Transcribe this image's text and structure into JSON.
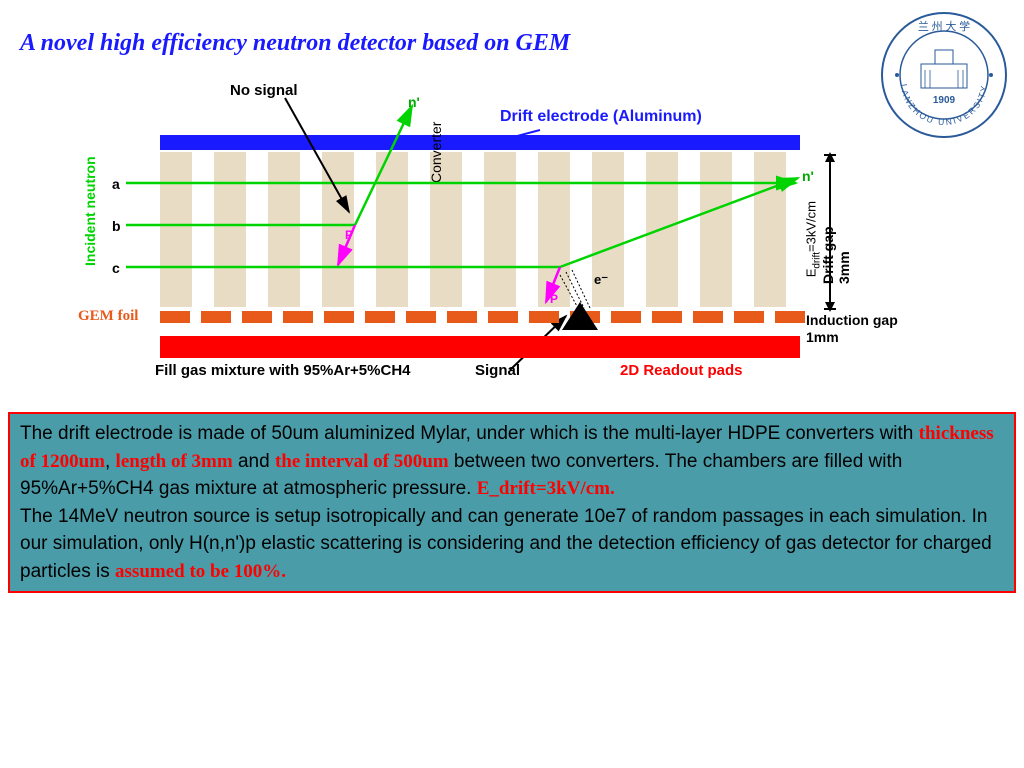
{
  "title": "A novel high efficiency neutron detector based on GEM",
  "logo": {
    "text_top": "兰州大学",
    "text_bottom": "LANZHOU UNIVERSITY",
    "year": "1909",
    "ring_color": "#2a5a9a",
    "inner_color": "#ffffff"
  },
  "diagram": {
    "drift_electrode_label": "Drift electrode (Aluminum)",
    "drift_electrode_color": "#1a1aff",
    "no_signal": "No signal",
    "converter_label": "Converter",
    "converter_color": "#e8dcc4",
    "converter_count": 12,
    "converter_width": 32,
    "converter_gap": 22,
    "gem_foil_label": "GEM foil",
    "gem_color": "#e85a1a",
    "gem_segment_count": 16,
    "readout_color": "#ff0000",
    "readout_label": "2D Readout pads",
    "fill_gas": "Fill gas mixture with 95%Ar+5%CH4",
    "signal_label": "Signal",
    "incident_label": "Incident neutron",
    "neutron_tracks": [
      "a",
      "b",
      "c"
    ],
    "nprime": "n'",
    "p_label": "P",
    "e_label": "e⁻",
    "drift_gap": "Drift gap 3mm",
    "edrift_text": "=3kV/cm",
    "edrift_prefix": "E",
    "edrift_sub": "drift",
    "induction_gap": "Induction gap",
    "induction_val": "1mm",
    "neutron_color": "#00d400",
    "proton_color": "#ff00ff"
  },
  "desc": {
    "p1a": "The drift electrode is made of 50um aluminized Mylar, under which is the multi-layer HDPE converters with ",
    "r1": "thickness of 1200um",
    "p1b": ", ",
    "r2": "length of 3mm",
    "p1c": " and ",
    "r3": "the interval of 500um",
    "p1d": " between two converters. The chambers are filled with 95%Ar+5%CH4 gas mixture at atmospheric pressure. ",
    "r4": "E_drift=3kV/cm.",
    "p2a": "The 14MeV neutron source is setup isotropically and can generate 10e7 of random passages in each simulation. In our simulation, only H(n,n')p elastic scattering is considering and the detection efficiency of gas detector for charged particles is ",
    "r5": "assumed to be 100%."
  }
}
